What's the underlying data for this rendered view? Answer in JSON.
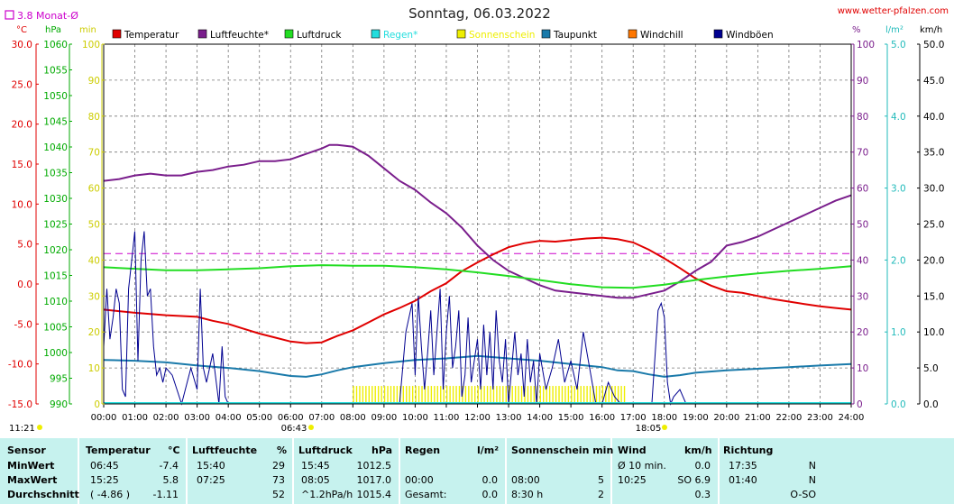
{
  "header": {
    "title": "Sonntag, 06.03.2022",
    "site": "www.wetter-pfalzen.com",
    "monthly_avg": "3.8 Monat-Ø",
    "units_left": [
      "°C",
      "hPa",
      "min"
    ],
    "units_right": [
      "%",
      "l/m²",
      "km/h"
    ]
  },
  "legend": [
    {
      "label": "Temperatur",
      "color": "#e00000"
    },
    {
      "label": "Luftfeuchte*",
      "color": "#7a1e8c"
    },
    {
      "label": "Luftdruck",
      "color": "#22dd22"
    },
    {
      "label": "Regen*",
      "color": "#22dddd"
    },
    {
      "label": "Sonnenschein",
      "color": "#eeee00"
    },
    {
      "label": "Taupunkt",
      "color": "#1a7aaa"
    },
    {
      "label": "Windchill",
      "color": "#ff7700"
    },
    {
      "label": "Windböen",
      "color": "#000090"
    }
  ],
  "sun": {
    "rise": "06:43",
    "set": "18:05",
    "now": "11:21"
  },
  "chart_data": {
    "type": "line",
    "x_range": [
      0,
      24
    ],
    "x_ticks": [
      "00:00",
      "01:00",
      "02:00",
      "03:00",
      "04:00",
      "05:00",
      "06:00",
      "07:00",
      "08:00",
      "09:00",
      "10:00",
      "11:00",
      "12:00",
      "13:00",
      "14:00",
      "15:00",
      "16:00",
      "17:00",
      "18:00",
      "19:00",
      "20:00",
      "21:00",
      "22:00",
      "23:00",
      "24:00"
    ],
    "axes": {
      "temp_c": {
        "range": [
          -15,
          30
        ],
        "ticks": [
          "30.0",
          "25.0",
          "20.0",
          "15.0",
          "10.0",
          "5.0",
          "0.0",
          "-5.0",
          "-10.0",
          "-15.0"
        ]
      },
      "pressure": {
        "range": [
          990,
          1060
        ],
        "ticks": [
          "1060",
          "1055",
          "1050",
          "1045",
          "1040",
          "1035",
          "1030",
          "1025",
          "1020",
          "1015",
          "1010",
          "1005",
          "1000",
          "995",
          "990"
        ]
      },
      "sun_min": {
        "range": [
          0,
          100
        ],
        "ticks": [
          "100",
          "90",
          "80",
          "70",
          "60",
          "50",
          "40",
          "30",
          "20",
          "10",
          "0"
        ]
      },
      "humidity": {
        "range": [
          0,
          100
        ],
        "ticks": [
          "100",
          "90",
          "80",
          "70",
          "60",
          "50",
          "40",
          "30",
          "20",
          "10",
          "0"
        ]
      },
      "rain": {
        "range": [
          0,
          5
        ],
        "ticks": [
          "5.0",
          "4.0",
          "3.0",
          "2.0",
          "1.0",
          "0.0"
        ]
      },
      "wind": {
        "range": [
          0,
          50
        ],
        "ticks": [
          "50.0",
          "45.0",
          "40.0",
          "35.0",
          "30.0",
          "25.0",
          "20.0",
          "15.0",
          "10.0",
          "5.0",
          "0.0"
        ]
      }
    },
    "monthly_avg_temp": 3.8,
    "series": [
      {
        "name": "Temperatur",
        "axis": "temp_c",
        "color": "#e00000",
        "x": [
          0,
          1,
          2,
          3,
          3.5,
          4,
          4.5,
          5,
          5.5,
          6,
          6.5,
          7,
          7.5,
          8,
          8.5,
          9,
          9.5,
          10,
          10.5,
          11,
          11.5,
          12,
          12.5,
          13,
          13.5,
          14,
          14.5,
          15,
          15.5,
          16,
          16.5,
          17,
          17.5,
          18,
          18.5,
          19,
          19.5,
          20,
          20.5,
          21,
          21.5,
          22,
          22.5,
          23,
          23.5,
          24
        ],
        "y": [
          -3.2,
          -3.6,
          -3.9,
          -4.1,
          -4.6,
          -5.0,
          -5.6,
          -6.2,
          -6.7,
          -7.2,
          -7.4,
          -7.3,
          -6.5,
          -5.8,
          -4.8,
          -3.8,
          -3.0,
          -2.1,
          -0.9,
          0.1,
          1.6,
          2.7,
          3.7,
          4.6,
          5.1,
          5.4,
          5.3,
          5.5,
          5.7,
          5.8,
          5.6,
          5.2,
          4.3,
          3.2,
          2.0,
          0.7,
          -0.2,
          -0.9,
          -1.1,
          -1.5,
          -1.9,
          -2.2,
          -2.5,
          -2.8,
          -3.0,
          -3.2
        ]
      },
      {
        "name": "Luftfeuchte*",
        "axis": "humidity",
        "color": "#7a1e8c",
        "x": [
          0,
          0.5,
          1,
          1.5,
          2,
          2.5,
          3,
          3.5,
          4,
          4.5,
          5,
          5.5,
          6,
          6.5,
          7,
          7.25,
          7.5,
          8,
          8.5,
          9,
          9.5,
          10,
          10.5,
          11,
          11.5,
          12,
          12.5,
          13,
          13.5,
          14,
          14.5,
          15,
          15.5,
          16,
          16.5,
          17,
          17.5,
          18,
          18.5,
          19,
          19.5,
          20,
          20.5,
          21,
          21.5,
          22,
          22.5,
          23,
          23.5,
          24
        ],
        "y": [
          62,
          62.5,
          63.5,
          64,
          63.5,
          63.5,
          64.5,
          65,
          66,
          66.5,
          67.5,
          67.5,
          68,
          69.5,
          71,
          72,
          72,
          71.5,
          69,
          65.5,
          62,
          59.5,
          56,
          53,
          49,
          44,
          40,
          37,
          35,
          33,
          31.5,
          31,
          30.5,
          30,
          29.5,
          29.5,
          30.5,
          31.5,
          34,
          37,
          39.5,
          44,
          45,
          46.5,
          48.5,
          50.5,
          52.5,
          54.5,
          56.5,
          58
        ]
      },
      {
        "name": "Luftdruck",
        "axis": "pressure",
        "color": "#22dd22",
        "x": [
          0,
          1,
          2,
          3,
          4,
          5,
          6,
          7,
          8,
          9,
          10,
          11,
          12,
          13,
          14,
          15,
          16,
          17,
          18,
          19,
          20,
          21,
          22,
          23,
          24
        ],
        "y": [
          1016.6,
          1016.3,
          1016.0,
          1016.0,
          1016.2,
          1016.4,
          1016.8,
          1017.0,
          1016.9,
          1016.9,
          1016.6,
          1016.2,
          1015.6,
          1014.9,
          1014.1,
          1013.3,
          1012.7,
          1012.6,
          1013.2,
          1014.1,
          1014.8,
          1015.4,
          1015.9,
          1016.3,
          1016.8
        ]
      },
      {
        "name": "Taupunkt",
        "axis": "temp_c",
        "color": "#1a7aaa",
        "x": [
          0,
          1,
          2,
          3,
          4,
          5,
          6,
          6.5,
          7,
          7.5,
          8,
          9,
          10,
          11,
          12,
          13,
          14,
          15,
          16,
          16.5,
          17,
          17.5,
          18,
          18.5,
          19,
          20,
          21,
          22,
          23,
          24
        ],
        "y": [
          -9.5,
          -9.6,
          -9.8,
          -10.2,
          -10.5,
          -10.9,
          -11.5,
          -11.6,
          -11.3,
          -10.8,
          -10.4,
          -9.9,
          -9.5,
          -9.3,
          -9.0,
          -9.3,
          -9.6,
          -10.0,
          -10.4,
          -10.8,
          -10.9,
          -11.3,
          -11.6,
          -11.4,
          -11.1,
          -10.8,
          -10.6,
          -10.4,
          -10.2,
          -10.0
        ]
      },
      {
        "name": "Windböen",
        "axis": "wind",
        "color": "#000090",
        "x": [
          0,
          0.1,
          0.2,
          0.3,
          0.4,
          0.5,
          0.6,
          0.7,
          0.8,
          0.9,
          1.0,
          1.1,
          1.2,
          1.3,
          1.4,
          1.5,
          1.6,
          1.7,
          1.8,
          1.9,
          2.0,
          2.2,
          2.5,
          2.8,
          3.0,
          3.1,
          3.2,
          3.3,
          3.5,
          3.7,
          3.8,
          3.9,
          4.0,
          9.5,
          9.7,
          9.9,
          10.0,
          10.1,
          10.2,
          10.3,
          10.4,
          10.5,
          10.6,
          10.7,
          10.8,
          10.9,
          11.0,
          11.1,
          11.2,
          11.3,
          11.4,
          11.5,
          11.6,
          11.7,
          11.8,
          11.9,
          12.0,
          12.1,
          12.2,
          12.3,
          12.4,
          12.5,
          12.6,
          12.7,
          12.8,
          12.9,
          13.0,
          13.1,
          13.2,
          13.3,
          13.4,
          13.5,
          13.6,
          13.7,
          13.8,
          13.9,
          14.0,
          14.2,
          14.4,
          14.6,
          14.8,
          15.0,
          15.2,
          15.4,
          15.6,
          15.8,
          16.0,
          16.2,
          16.4,
          16.6,
          16.8,
          17.0,
          17.3,
          17.6,
          17.8,
          17.9,
          18.0,
          18.1,
          18.2,
          18.3,
          18.5,
          18.7,
          18.9,
          19.0
        ],
        "y": [
          8,
          16,
          9,
          12,
          16,
          14,
          2,
          1,
          16,
          20,
          24,
          6,
          20,
          24,
          15,
          16,
          8,
          4,
          5,
          3,
          5,
          4,
          0,
          5,
          2,
          16,
          5,
          3,
          7,
          0,
          8,
          1,
          0,
          0,
          10,
          14,
          4,
          15,
          8,
          2,
          7,
          13,
          4,
          10,
          16,
          2,
          10,
          15,
          5,
          8,
          13,
          1,
          4,
          12,
          3,
          6,
          9,
          2,
          11,
          4,
          10,
          2,
          13,
          6,
          3,
          9,
          0,
          5,
          10,
          4,
          7,
          1,
          9,
          3,
          6,
          0,
          7,
          2,
          5,
          9,
          3,
          6,
          2,
          10,
          5,
          0,
          0,
          3,
          1,
          0,
          0,
          0,
          0,
          0,
          13,
          14,
          12,
          3,
          0,
          1,
          2,
          0,
          0,
          0
        ]
      }
    ],
    "bars": {
      "name": "Sonnenschein",
      "axis": "sun_min",
      "color": "#eeee00",
      "x_start": 8.0,
      "x_end": 16.75,
      "values_desc": "mostly ~5 min per 10 min slot",
      "x": [
        8.0,
        8.1,
        8.2,
        8.3,
        8.4,
        8.5,
        8.6,
        8.7,
        8.8,
        8.9,
        9.0,
        9.1,
        9.2,
        9.3,
        9.4,
        9.5,
        9.6,
        9.7,
        9.8,
        9.9,
        10.0,
        10.1,
        10.2,
        10.3,
        10.4,
        10.5,
        10.6,
        10.7,
        10.8,
        10.9,
        11.0,
        11.1,
        11.2,
        11.3,
        11.4,
        11.5,
        11.6,
        11.7,
        11.8,
        11.9,
        12.0,
        12.1,
        12.2,
        12.3,
        12.4,
        12.5,
        12.6,
        12.7,
        12.8,
        12.9,
        13.0,
        13.1,
        13.2,
        13.3,
        13.4,
        13.5,
        13.6,
        13.7,
        13.8,
        13.9,
        14.0,
        14.1,
        14.2,
        14.3,
        14.4,
        14.5,
        14.6,
        14.7,
        14.8,
        14.9,
        15.0,
        15.1,
        15.2,
        15.3,
        15.4,
        15.5,
        15.6,
        15.7,
        15.8,
        15.9,
        16.0,
        16.1,
        16.2,
        16.3,
        16.4,
        16.5,
        16.6,
        16.7
      ],
      "value": 5
    }
  },
  "table": {
    "headers": {
      "sensor": "Sensor",
      "temp": "Temperatur",
      "temp_u": "°C",
      "hum": "Luftfeuchte",
      "hum_u": "%",
      "press": "Luftdruck",
      "press_u": "hPa",
      "rain": "Regen",
      "rain_u": "l/m²",
      "sun": "Sonnenschein min",
      "wind": "Wind",
      "wind_u": "km/h",
      "dir": "Richtung"
    },
    "rows": [
      {
        "label": "MinWert",
        "temp_t": "06:45",
        "temp_v": "-7.4",
        "hum_t": "15:40",
        "hum_v": "29",
        "press_t": "15:45",
        "press_v": "1012.5",
        "rain_t": "",
        "rain_v": "",
        "sun_t": "",
        "sun_v": "",
        "wind_t": "Ø 10 min.",
        "wind_v": "0.0",
        "dir_t": "17:35",
        "dir_v": "N"
      },
      {
        "label": "MaxWert",
        "temp_t": "15:25",
        "temp_v": "5.8",
        "hum_t": "07:25",
        "hum_v": "73",
        "press_t": "08:05",
        "press_v": "1017.0",
        "rain_t": "00:00",
        "rain_v": "0.0",
        "sun_t": "08:00",
        "sun_v": "5",
        "wind_t": "10:25",
        "wind_v": "SO 6.9",
        "dir_t": "01:40",
        "dir_v": "N"
      },
      {
        "label": "Durchschnitt",
        "temp_t": "( -4.86 )",
        "temp_v": "-1.11",
        "hum_t": "",
        "hum_v": "52",
        "press_t": "^1.2hPa/h",
        "press_v": "1015.4",
        "rain_t": "Gesamt:",
        "rain_v": "0.0",
        "sun_t": "8:30 h",
        "sun_v": "2",
        "wind_t": "",
        "wind_v": "0.3",
        "dir_t": "",
        "dir_v": "O-SO"
      }
    ]
  }
}
